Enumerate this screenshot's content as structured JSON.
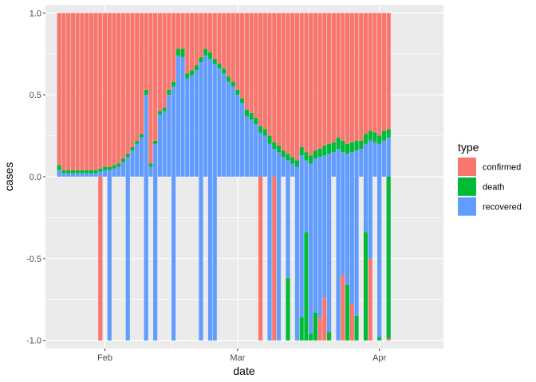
{
  "chart_data": {
    "type": "bar",
    "stacking": "fill",
    "xlabel": "date",
    "ylabel": "cases",
    "ylim": [
      -1.05,
      1.05
    ],
    "yticks": [
      -1.0,
      -0.5,
      0.0,
      0.5,
      1.0
    ],
    "ytick_labels": [
      "-1.0",
      "-0.5",
      "0.0",
      "0.5",
      "1.0"
    ],
    "xlim": [
      "2020-01-19",
      "2020-04-15"
    ],
    "xticks": [
      "2020-02-01",
      "2020-03-01",
      "2020-04-01"
    ],
    "xtick_labels": [
      "Feb",
      "Mar",
      "Apr"
    ],
    "first_date": "2020-01-22",
    "grid": true,
    "legend": {
      "title": "type",
      "position": "right",
      "entries": [
        {
          "label": "confirmed",
          "color": "#F8766D"
        },
        {
          "label": "death",
          "color": "#00BA38"
        },
        {
          "label": "recovered",
          "color": "#619CFF"
        }
      ]
    },
    "series_order_bottom_to_top": [
      "recovered",
      "death",
      "confirmed"
    ],
    "recovered": [
      0.04,
      0.02,
      0.02,
      0.02,
      0.02,
      0.02,
      0.02,
      0.02,
      0.02,
      0.03,
      0.04,
      0.04,
      0.05,
      0.06,
      0.09,
      0.12,
      0.16,
      0.2,
      0.24,
      0.5,
      0.06,
      0.2,
      0.38,
      0.4,
      0.5,
      0.55,
      0.74,
      0.73,
      0.6,
      0.62,
      0.65,
      0.7,
      0.74,
      0.72,
      0.69,
      0.66,
      0.63,
      0.58,
      0.55,
      0.5,
      0.45,
      0.37,
      0.35,
      0.32,
      0.27,
      0.25,
      0.2,
      0.17,
      0.15,
      0.12,
      0.1,
      0.08,
      0.06,
      0.13,
      0.1,
      0.08,
      0.11,
      0.12,
      0.13,
      0.14,
      0.15,
      0.17,
      0.15,
      0.14,
      0.15,
      0.16,
      0.17,
      0.2,
      0.22,
      0.21,
      0.2,
      0.22,
      0.24
    ],
    "death": [
      0.03,
      0.02,
      0.02,
      0.02,
      0.02,
      0.02,
      0.02,
      0.02,
      0.02,
      0.02,
      0.02,
      0.02,
      0.02,
      0.02,
      0.02,
      0.02,
      0.02,
      0.02,
      0.02,
      0.03,
      0.02,
      0.02,
      0.02,
      0.02,
      0.03,
      0.03,
      0.04,
      0.05,
      0.03,
      0.03,
      0.03,
      0.03,
      0.04,
      0.04,
      0.03,
      0.03,
      0.03,
      0.03,
      0.03,
      0.03,
      0.03,
      0.04,
      0.04,
      0.04,
      0.04,
      0.04,
      0.05,
      0.04,
      0.04,
      0.04,
      0.04,
      0.04,
      0.04,
      0.05,
      0.05,
      0.05,
      0.05,
      0.05,
      0.06,
      0.06,
      0.06,
      0.07,
      0.07,
      0.06,
      0.06,
      0.06,
      0.05,
      0.06,
      0.06,
      0.06,
      0.05,
      0.06,
      0.05
    ],
    "negative_days": [
      {
        "day": 9,
        "confirmed": 1.0
      },
      {
        "day": 11,
        "recovered": 1.0
      },
      {
        "day": 15,
        "recovered": 1.0
      },
      {
        "day": 19,
        "recovered": 1.0
      },
      {
        "day": 21,
        "recovered": 1.0
      },
      {
        "day": 25,
        "recovered": 1.0
      },
      {
        "day": 31,
        "recovered": 1.0
      },
      {
        "day": 33,
        "recovered": 1.0
      },
      {
        "day": 34,
        "recovered": 1.0
      },
      {
        "day": 44,
        "confirmed": 1.0
      },
      {
        "day": 46,
        "recovered": 1.0
      },
      {
        "day": 47,
        "confirmed": 1.0
      },
      {
        "day": 48,
        "recovered": 1.0
      },
      {
        "day": 50,
        "recovered": 0.62,
        "death": 0.38
      },
      {
        "day": 52,
        "recovered": 1.0
      },
      {
        "day": 53,
        "recovered": 0.86,
        "death": 0.14
      },
      {
        "day": 54,
        "recovered": 0.34,
        "death": 0.66
      },
      {
        "day": 55,
        "recovered": 0.96,
        "death": 0.04
      },
      {
        "day": 56,
        "recovered": 0.83,
        "death": 0.17
      },
      {
        "day": 57,
        "recovered": 0.86,
        "confirmed": 0.14
      },
      {
        "day": 58,
        "recovered": 0.74,
        "confirmed": 0.26
      },
      {
        "day": 59,
        "recovered": 0.95,
        "death": 0.05
      },
      {
        "day": 61,
        "recovered": 1.0
      },
      {
        "day": 62,
        "recovered": 0.6,
        "confirmed": 0.4
      },
      {
        "day": 63,
        "recovered": 0.66,
        "death": 0.34
      },
      {
        "day": 64,
        "recovered": 0.78,
        "confirmed": 0.22
      },
      {
        "day": 65,
        "recovered": 0.85,
        "death": 0.15
      },
      {
        "day": 67,
        "recovered": 0.34,
        "death": 0.66
      },
      {
        "day": 68,
        "recovered": 0.5,
        "confirmed": 0.5
      },
      {
        "day": 70,
        "recovered": 0.98,
        "death": 0.02
      },
      {
        "day": 72,
        "confirmed": 0.01,
        "death": 0.99
      }
    ]
  }
}
